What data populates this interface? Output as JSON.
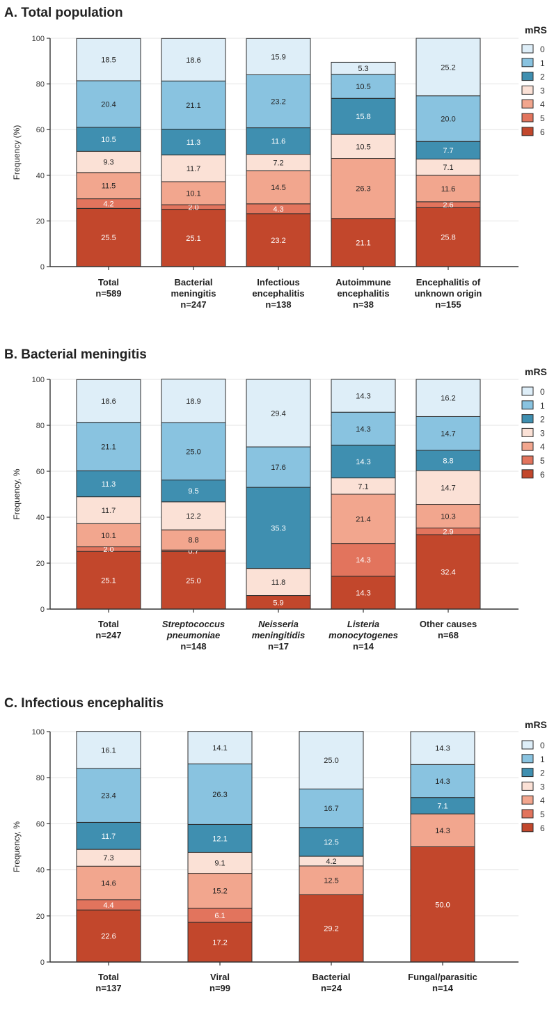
{
  "colors": {
    "0": "#deeef8",
    "1": "#89c3e0",
    "2": "#3f8fb0",
    "3": "#fbe1d6",
    "4": "#f2a68e",
    "5": "#e2745d",
    "6": "#c2472c"
  },
  "chart_data": [
    {
      "type": "bar",
      "stacked": true,
      "title": "A. Total population",
      "ylabel": "Frequency (%)",
      "ylim": [
        0,
        100
      ],
      "yticks": [
        0,
        20,
        40,
        60,
        80,
        100
      ],
      "legend_title": "mRS",
      "legend_position": "right",
      "legend": [
        "0",
        "1",
        "2",
        "3",
        "4",
        "5",
        "6"
      ],
      "categories": [
        {
          "label": [
            "Total",
            "n=589"
          ],
          "italic": []
        },
        {
          "label": [
            "Bacterial",
            "meningitis",
            "n=247"
          ],
          "italic": []
        },
        {
          "label": [
            "Infectious",
            "encephalitis",
            "n=138"
          ],
          "italic": []
        },
        {
          "label": [
            "Autoimmune",
            "encephalitis",
            "n=38"
          ],
          "italic": []
        },
        {
          "label": [
            "Encephalitis of",
            "unknown origin",
            "n=155"
          ],
          "italic": []
        }
      ],
      "series": [
        {
          "name": "6",
          "values": [
            25.5,
            25.1,
            23.2,
            21.1,
            25.8
          ]
        },
        {
          "name": "5",
          "values": [
            4.2,
            2.0,
            4.3,
            null,
            2.6
          ]
        },
        {
          "name": "4",
          "values": [
            11.5,
            10.1,
            14.5,
            26.3,
            11.6
          ]
        },
        {
          "name": "3",
          "values": [
            9.3,
            11.7,
            7.2,
            10.5,
            7.1
          ]
        },
        {
          "name": "2",
          "values": [
            10.5,
            11.3,
            11.6,
            15.8,
            7.7
          ]
        },
        {
          "name": "1",
          "values": [
            20.4,
            21.1,
            23.2,
            10.5,
            20.0
          ]
        },
        {
          "name": "0",
          "values": [
            18.5,
            18.6,
            15.9,
            5.3,
            25.2
          ]
        }
      ]
    },
    {
      "type": "bar",
      "stacked": true,
      "title": "B. Bacterial meningitis",
      "ylabel": "Frequency, %",
      "ylim": [
        0,
        100
      ],
      "yticks": [
        0,
        20,
        40,
        60,
        80,
        100
      ],
      "legend_title": "mRS",
      "legend_position": "right",
      "legend": [
        "0",
        "1",
        "2",
        "3",
        "4",
        "5",
        "6"
      ],
      "categories": [
        {
          "label": [
            "Total",
            "n=247"
          ],
          "italic": []
        },
        {
          "label": [
            "Streptococcus",
            "pneumoniae",
            "n=148"
          ],
          "italic": [
            0,
            1
          ]
        },
        {
          "label": [
            "Neisseria",
            "meningitidis",
            "n=17"
          ],
          "italic": [
            0,
            1
          ]
        },
        {
          "label": [
            "Listeria",
            "monocytogenes",
            "n=14"
          ],
          "italic": [
            0,
            1
          ]
        },
        {
          "label": [
            "Other causes",
            "n=68"
          ],
          "italic": []
        }
      ],
      "series": [
        {
          "name": "6",
          "values": [
            25.1,
            25.0,
            5.9,
            14.3,
            32.4
          ]
        },
        {
          "name": "5",
          "values": [
            2.0,
            0.7,
            null,
            14.3,
            2.9
          ]
        },
        {
          "name": "4",
          "values": [
            10.1,
            8.8,
            null,
            21.4,
            10.3
          ]
        },
        {
          "name": "3",
          "values": [
            11.7,
            12.2,
            11.8,
            7.1,
            14.7
          ]
        },
        {
          "name": "2",
          "values": [
            11.3,
            9.5,
            35.3,
            14.3,
            8.8
          ]
        },
        {
          "name": "1",
          "values": [
            21.1,
            25.0,
            17.6,
            14.3,
            14.7
          ]
        },
        {
          "name": "0",
          "values": [
            18.6,
            18.9,
            29.4,
            14.3,
            16.2
          ]
        }
      ]
    },
    {
      "type": "bar",
      "stacked": true,
      "title": "C. Infectious encephalitis",
      "ylabel": "Frequency, %",
      "ylim": [
        0,
        100
      ],
      "yticks": [
        0,
        20,
        40,
        60,
        80,
        100
      ],
      "legend_title": "mRS",
      "legend_position": "right",
      "legend": [
        "0",
        "1",
        "2",
        "3",
        "4",
        "5",
        "6"
      ],
      "categories": [
        {
          "label": [
            "Total",
            "n=137"
          ],
          "italic": []
        },
        {
          "label": [
            "Viral",
            "n=99"
          ],
          "italic": []
        },
        {
          "label": [
            "Bacterial",
            "n=24"
          ],
          "italic": []
        },
        {
          "label": [
            "Fungal/parasitic",
            "n=14"
          ],
          "italic": []
        }
      ],
      "series": [
        {
          "name": "6",
          "values": [
            22.6,
            17.2,
            29.2,
            50.0
          ]
        },
        {
          "name": "5",
          "values": [
            4.4,
            6.1,
            null,
            null
          ]
        },
        {
          "name": "4",
          "values": [
            14.6,
            15.2,
            12.5,
            14.3
          ]
        },
        {
          "name": "3",
          "values": [
            7.3,
            9.1,
            4.2,
            null
          ]
        },
        {
          "name": "2",
          "values": [
            11.7,
            12.1,
            12.5,
            7.1
          ]
        },
        {
          "name": "1",
          "values": [
            23.4,
            26.3,
            16.7,
            14.3
          ]
        },
        {
          "name": "0",
          "values": [
            16.1,
            14.1,
            25.0,
            14.3
          ]
        }
      ]
    }
  ]
}
